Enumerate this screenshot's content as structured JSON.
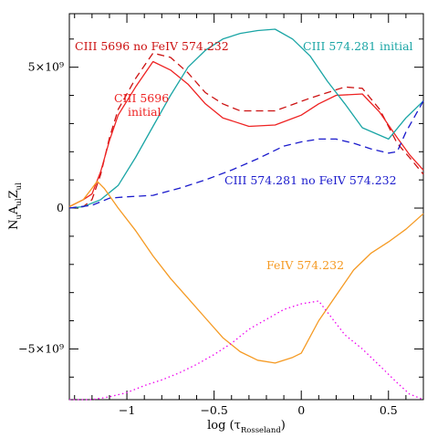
{
  "chart_data": {
    "type": "line",
    "title": "",
    "xlabel": "log (τ",
    "xlabel_sub": "Rosseland",
    "xlabel_close": ")",
    "ylabel": "N",
    "ylabel_parts": {
      "n_sub": "u",
      "a": "A",
      "a_sub": "ul",
      "z": "Z",
      "z_sub": "ul"
    },
    "xlim": [
      -1.33,
      0.7
    ],
    "ylim": [
      -6800000000.0,
      6900000000.0
    ],
    "x_ticks": [
      {
        "value": -1,
        "label": "−1"
      },
      {
        "value": -0.5,
        "label": "−0.5"
      },
      {
        "value": 0,
        "label": "0"
      },
      {
        "value": 0.5,
        "label": "0.5"
      }
    ],
    "y_ticks": [
      {
        "value": 5000000000.0,
        "label": "5×10⁹"
      },
      {
        "value": 0,
        "label": "0"
      },
      {
        "value": -5000000000.0,
        "label": "−5×10⁹"
      }
    ],
    "series": [
      {
        "name": "CIII 5696 no FeIV 574.232",
        "color": "#cc1111",
        "dash": "8,5",
        "points": [
          [
            -1.33,
            0.0
          ],
          [
            -1.25,
            50000000.0
          ],
          [
            -1.2,
            300000000.0
          ],
          [
            -1.15,
            1200000000.0
          ],
          [
            -1.1,
            2500000000.0
          ],
          [
            -1.05,
            3500000000.0
          ],
          [
            -0.95,
            4600000000.0
          ],
          [
            -0.85,
            5500000000.0
          ],
          [
            -0.75,
            5350000000.0
          ],
          [
            -0.65,
            4800000000.0
          ],
          [
            -0.55,
            4100000000.0
          ],
          [
            -0.45,
            3700000000.0
          ],
          [
            -0.35,
            3450000000.0
          ],
          [
            -0.15,
            3450000000.0
          ],
          [
            0.05,
            3900000000.0
          ],
          [
            0.15,
            4100000000.0
          ],
          [
            0.25,
            4300000000.0
          ],
          [
            0.35,
            4250000000.0
          ],
          [
            0.45,
            3500000000.0
          ],
          [
            0.55,
            2300000000.0
          ],
          [
            0.62,
            1800000000.0
          ],
          [
            0.7,
            1200000000.0
          ]
        ]
      },
      {
        "name": "CIII 5696 initial",
        "color": "#ee2222",
        "dash": "",
        "points": [
          [
            -1.33,
            50000000.0
          ],
          [
            -1.25,
            300000000.0
          ],
          [
            -1.2,
            500000000.0
          ],
          [
            -1.15,
            1300000000.0
          ],
          [
            -1.1,
            2400000000.0
          ],
          [
            -1.05,
            3300000000.0
          ],
          [
            -0.95,
            4300000000.0
          ],
          [
            -0.85,
            5200000000.0
          ],
          [
            -0.75,
            4900000000.0
          ],
          [
            -0.65,
            4400000000.0
          ],
          [
            -0.55,
            3700000000.0
          ],
          [
            -0.45,
            3200000000.0
          ],
          [
            -0.3,
            2900000000.0
          ],
          [
            -0.15,
            2950000000.0
          ],
          [
            0.0,
            3300000000.0
          ],
          [
            0.1,
            3700000000.0
          ],
          [
            0.2,
            4000000000.0
          ],
          [
            0.35,
            4050000000.0
          ],
          [
            0.45,
            3400000000.0
          ],
          [
            0.55,
            2500000000.0
          ],
          [
            0.62,
            1900000000.0
          ],
          [
            0.7,
            1350000000.0
          ]
        ]
      },
      {
        "name": "CIII 574.281 initial",
        "color": "#1aa5a5",
        "dash": "",
        "points": [
          [
            -1.33,
            0.0
          ],
          [
            -1.25,
            50000000.0
          ],
          [
            -1.15,
            300000000.0
          ],
          [
            -1.05,
            800000000.0
          ],
          [
            -0.95,
            1800000000.0
          ],
          [
            -0.85,
            2900000000.0
          ],
          [
            -0.75,
            4000000000.0
          ],
          [
            -0.65,
            5000000000.0
          ],
          [
            -0.55,
            5600000000.0
          ],
          [
            -0.45,
            6000000000.0
          ],
          [
            -0.35,
            6200000000.0
          ],
          [
            -0.25,
            6300000000.0
          ],
          [
            -0.15,
            6350000000.0
          ],
          [
            -0.05,
            6000000000.0
          ],
          [
            0.05,
            5400000000.0
          ],
          [
            0.15,
            4500000000.0
          ],
          [
            0.25,
            3700000000.0
          ],
          [
            0.35,
            2850000000.0
          ],
          [
            0.5,
            2450000000.0
          ],
          [
            0.6,
            3200000000.0
          ],
          [
            0.7,
            3800000000.0
          ]
        ]
      },
      {
        "name": "CIII 574.281 no FeIV 574.232",
        "color": "#1a1acc",
        "dash": "8,5",
        "points": [
          [
            -1.33,
            0.0
          ],
          [
            -1.2,
            100000000.0
          ],
          [
            -1.1,
            350000000.0
          ],
          [
            -1.0,
            400000000.0
          ],
          [
            -0.85,
            450000000.0
          ],
          [
            -0.7,
            700000000.0
          ],
          [
            -0.55,
            1000000000.0
          ],
          [
            -0.4,
            1350000000.0
          ],
          [
            -0.25,
            1750000000.0
          ],
          [
            -0.1,
            2200000000.0
          ],
          [
            0.0,
            2350000000.0
          ],
          [
            0.1,
            2450000000.0
          ],
          [
            0.2,
            2450000000.0
          ],
          [
            0.3,
            2300000000.0
          ],
          [
            0.4,
            2100000000.0
          ],
          [
            0.5,
            1950000000.0
          ],
          [
            0.55,
            2000000000.0
          ],
          [
            0.6,
            2700000000.0
          ],
          [
            0.7,
            3800000000.0
          ]
        ]
      },
      {
        "name": "FeIV 574.232",
        "color": "#f59a23",
        "dash": "",
        "points": [
          [
            -1.33,
            50000000.0
          ],
          [
            -1.25,
            300000000.0
          ],
          [
            -1.2,
            700000000.0
          ],
          [
            -1.17,
            950000000.0
          ],
          [
            -1.13,
            700000000.0
          ],
          [
            -1.05,
            0.0
          ],
          [
            -0.95,
            -800000000.0
          ],
          [
            -0.85,
            -1700000000.0
          ],
          [
            -0.75,
            -2500000000.0
          ],
          [
            -0.65,
            -3200000000.0
          ],
          [
            -0.55,
            -3900000000.0
          ],
          [
            -0.45,
            -4600000000.0
          ],
          [
            -0.35,
            -5100000000.0
          ],
          [
            -0.25,
            -5400000000.0
          ],
          [
            -0.15,
            -5500000000.0
          ],
          [
            -0.05,
            -5300000000.0
          ],
          [
            0.0,
            -5150000000.0
          ],
          [
            0.1,
            -4000000000.0
          ],
          [
            0.2,
            -3100000000.0
          ],
          [
            0.3,
            -2200000000.0
          ],
          [
            0.4,
            -1600000000.0
          ],
          [
            0.5,
            -1200000000.0
          ],
          [
            0.6,
            -750000000.0
          ],
          [
            0.7,
            -200000000.0
          ]
        ]
      },
      {
        "name": "",
        "color": "#ee00ee",
        "dash": "1.5,3",
        "points": [
          [
            -1.33,
            -6800000000.0
          ],
          [
            -1.2,
            -6800000000.0
          ],
          [
            -1.1,
            -6700000000.0
          ],
          [
            -1.0,
            -6550000000.0
          ],
          [
            -0.9,
            -6300000000.0
          ],
          [
            -0.8,
            -6100000000.0
          ],
          [
            -0.7,
            -5850000000.0
          ],
          [
            -0.6,
            -5550000000.0
          ],
          [
            -0.5,
            -5200000000.0
          ],
          [
            -0.4,
            -4800000000.0
          ],
          [
            -0.3,
            -4300000000.0
          ],
          [
            -0.2,
            -3950000000.0
          ],
          [
            -0.1,
            -3600000000.0
          ],
          [
            0.0,
            -3400000000.0
          ],
          [
            0.1,
            -3300000000.0
          ],
          [
            0.15,
            -3700000000.0
          ],
          [
            0.25,
            -4500000000.0
          ],
          [
            0.35,
            -5000000000.0
          ],
          [
            0.45,
            -5600000000.0
          ],
          [
            0.55,
            -6200000000.0
          ],
          [
            0.62,
            -6600000000.0
          ],
          [
            0.7,
            -6800000000.0
          ]
        ]
      }
    ],
    "annotations": [
      {
        "text": "CIII 5696 no FeIV 574.232",
        "color": "#cc1111"
      },
      {
        "text": "CIII 574.281 initial",
        "color": "#1aa5a5"
      },
      {
        "text": "CIII 5696",
        "color": "#ee2222"
      },
      {
        "text": "initial",
        "color": "#ee2222"
      },
      {
        "text": "CIII 574.281 no FeIV 574.232",
        "color": "#1a1acc"
      },
      {
        "text": "FeIV 574.232",
        "color": "#f59a23"
      }
    ]
  }
}
